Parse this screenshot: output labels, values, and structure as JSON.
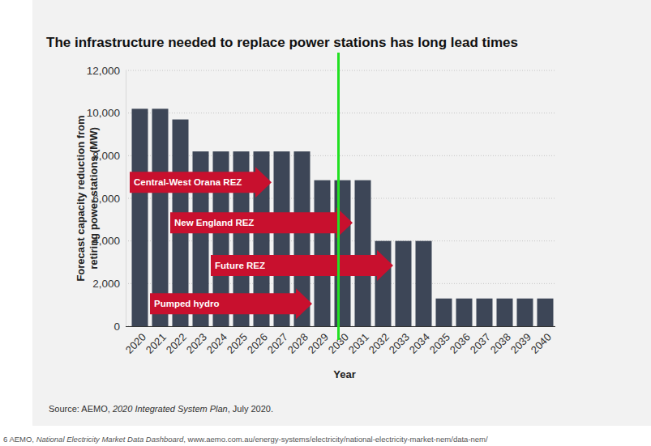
{
  "chart_data": {
    "type": "bar",
    "title": "The infrastructure needed to replace power stations has long lead times",
    "x_label": "Year",
    "y_label": [
      "Forecast capacity reduction from",
      "retiring power stations (MW)"
    ],
    "categories": [
      "2020",
      "2021",
      "2022",
      "2023",
      "2024",
      "2025",
      "2026",
      "2027",
      "2028",
      "2029",
      "2030",
      "2031",
      "2032",
      "2033",
      "2034",
      "2035",
      "2036",
      "2037",
      "2038",
      "2039",
      "2040"
    ],
    "values": [
      10200,
      10200,
      9700,
      8200,
      8200,
      8200,
      8200,
      8200,
      8200,
      6850,
      6850,
      6850,
      4000,
      4000,
      4000,
      1300,
      1300,
      1300,
      1300,
      1300,
      1300
    ],
    "color": "#3d4657",
    "ylim": [
      0,
      12000
    ],
    "yticks": [
      0,
      {
        "value": 2000,
        "label": "2,000"
      },
      {
        "value": 4000,
        "label": "4,000"
      },
      {
        "value": 6000,
        "label": "6,000"
      },
      {
        "value": 8000,
        "label": "8,000"
      },
      {
        "value": 10000,
        "label": "10,000"
      },
      {
        "value": 12000,
        "label": "12,000"
      }
    ],
    "grid": true,
    "annotations": [
      {
        "text": "Central-West Orana REZ",
        "start": "2020",
        "end": "2026",
        "y": 6750,
        "color": "#c8102e"
      },
      {
        "text": "New England REZ",
        "start": "2022",
        "end": "2030",
        "y": 4850,
        "color": "#c8102e"
      },
      {
        "text": "Future REZ",
        "start": "2024",
        "end": "2032",
        "y": 2850,
        "color": "#c8102e"
      },
      {
        "text": "Pumped hydro",
        "start": "2021",
        "end": "2028",
        "y": 1050,
        "color": "#c8102e"
      }
    ],
    "reference_line": {
      "x": "2030",
      "color": "#22e022"
    },
    "source": [
      "Source: AEMO, ",
      "2020 Integrated System Plan",
      ", July 2020."
    ],
    "footnote": [
      "6  AEMO, ",
      "National Electricity Market Data Dashboard",
      ", www.aemo.com.au/energy-systems/electricity/national-electricity-market-nem/data-nem/"
    ]
  }
}
